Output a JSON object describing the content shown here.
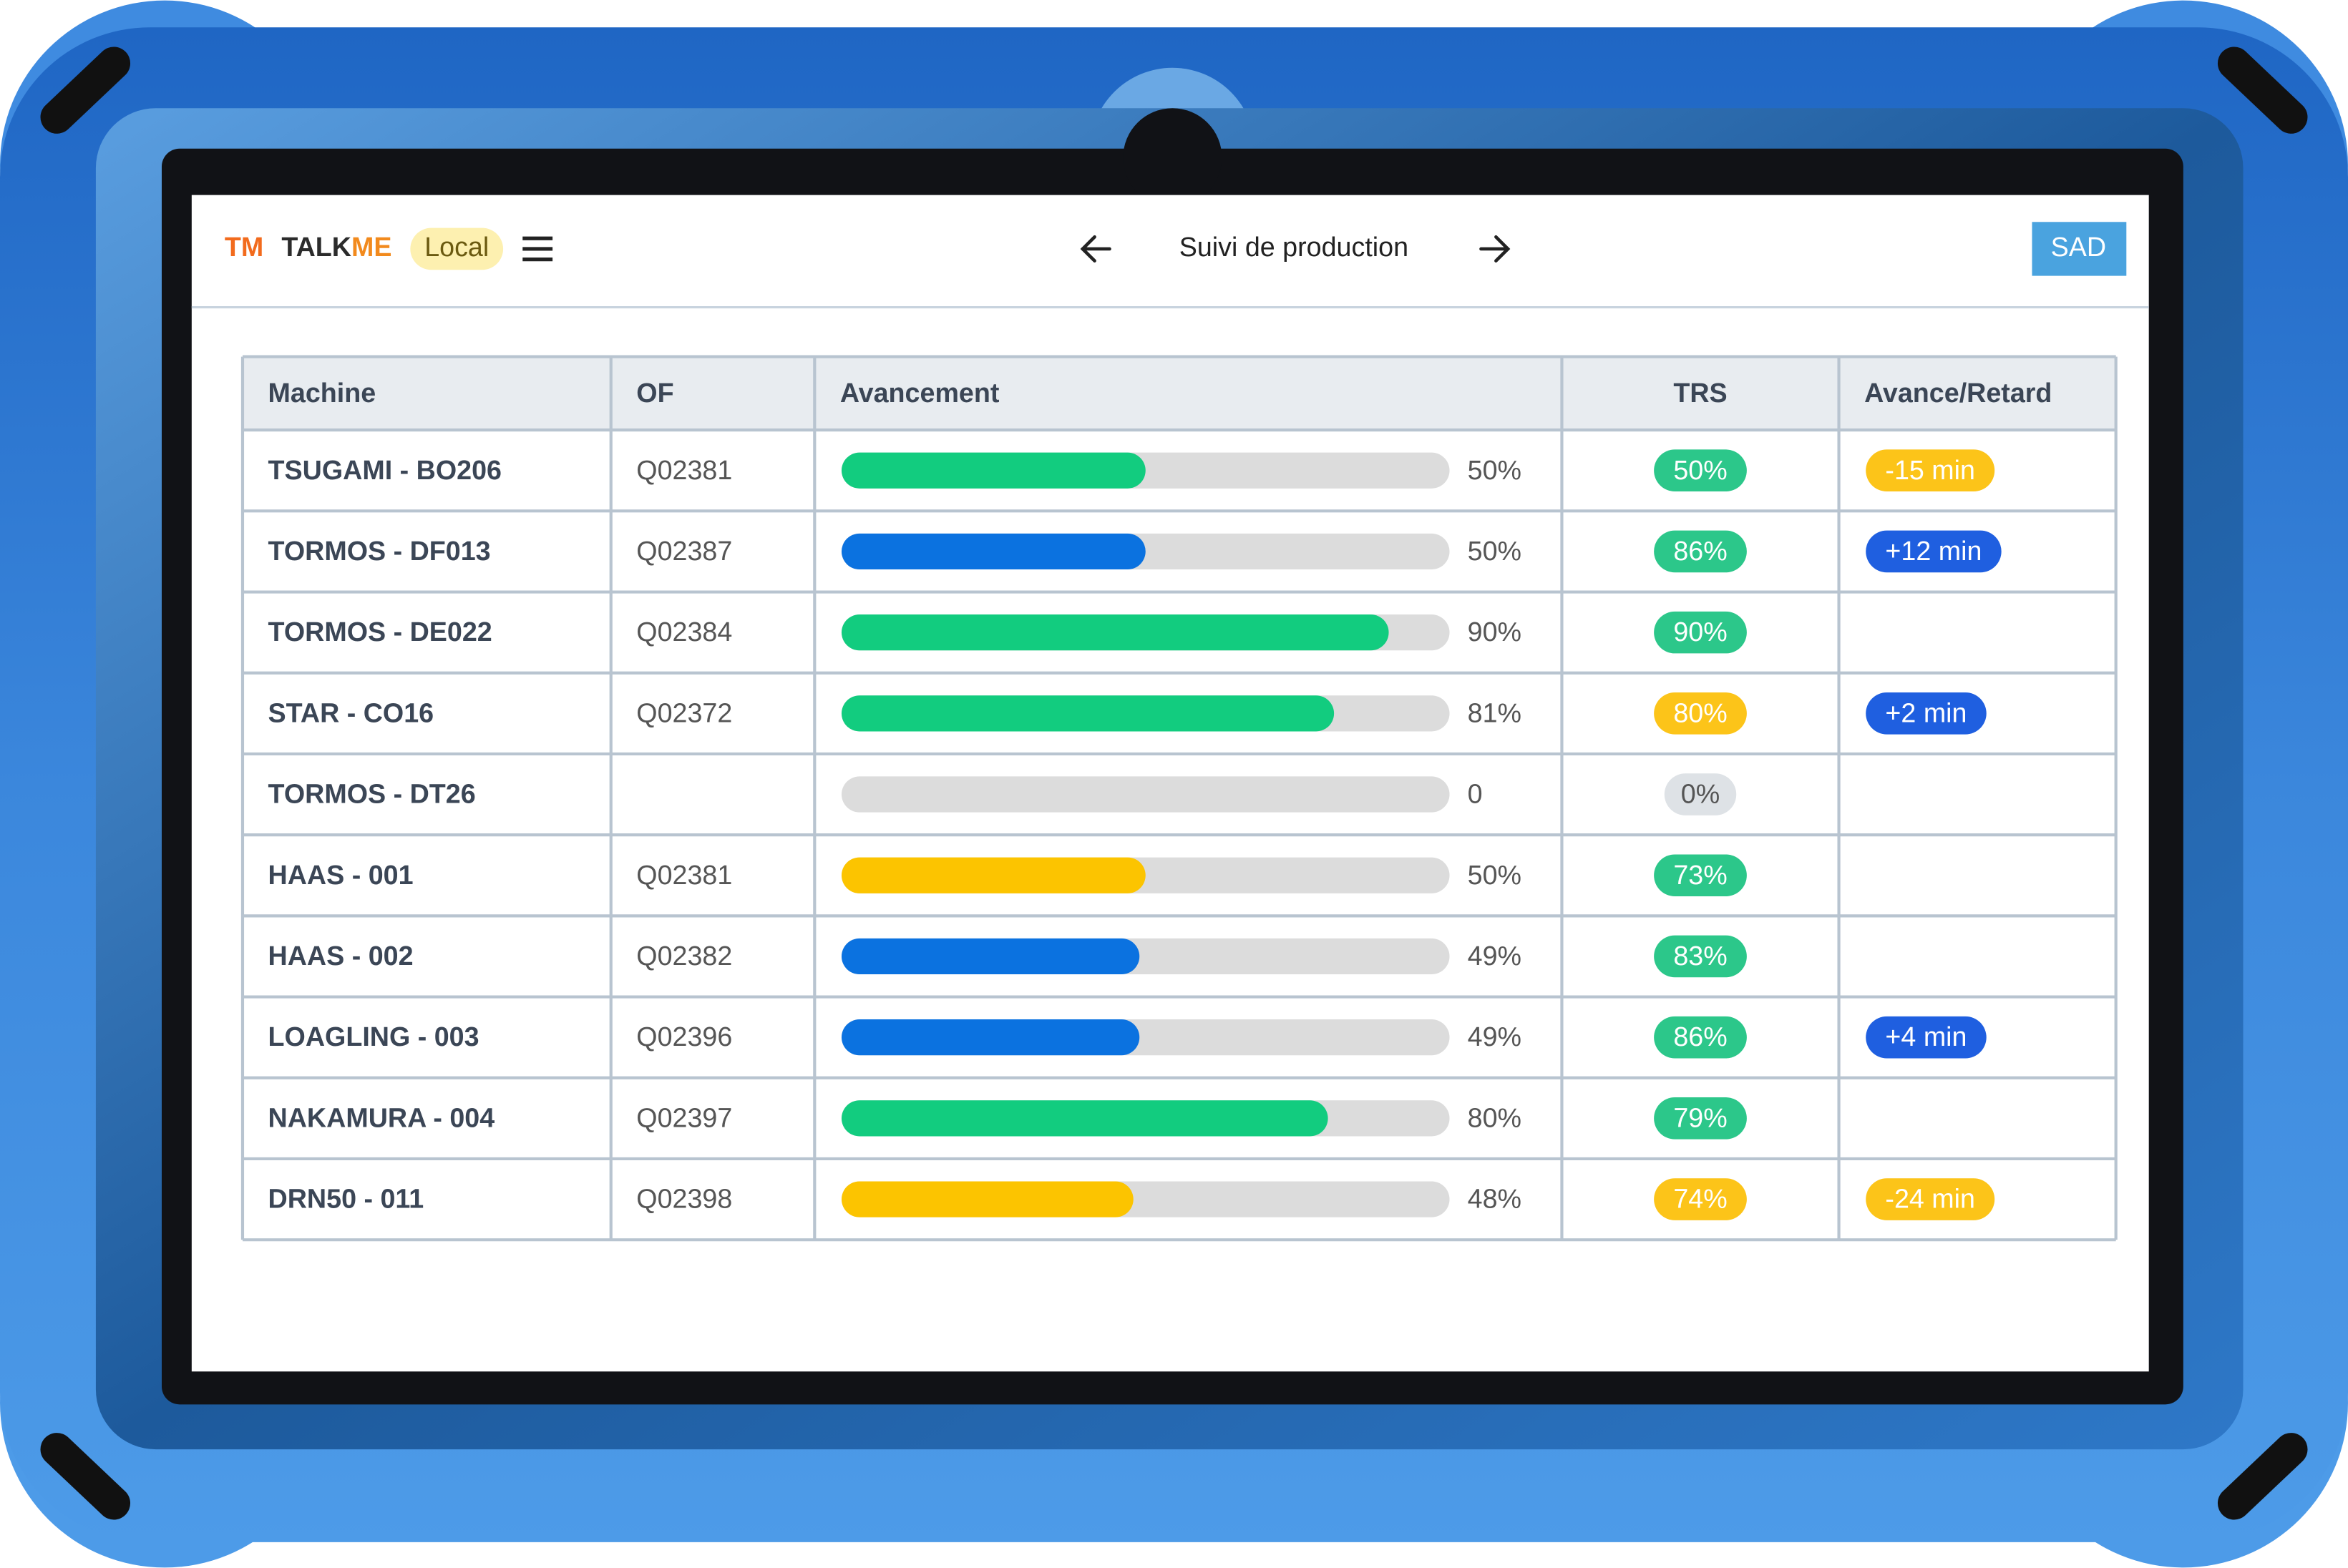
{
  "header": {
    "logo_mark": "TM",
    "logo_left": "TALK",
    "logo_right": "ME",
    "badge": "Local",
    "title": "Suivi de production",
    "user": "SAD"
  },
  "table": {
    "columns": [
      "Machine",
      "OF",
      "Avancement",
      "TRS",
      "Avance/Retard"
    ],
    "rows": [
      {
        "machine": "TSUGAMI - BO206",
        "of": "Q02381",
        "progress": 50,
        "progress_label": "50%",
        "bar_color": "#12cc7f",
        "trs": "50%",
        "trs_color": "#2cc78a",
        "delay": "-15 min",
        "delay_color": "#fcc419"
      },
      {
        "machine": "TORMOS - DF013",
        "of": "Q02387",
        "progress": 50,
        "progress_label": "50%",
        "bar_color": "#0b72e0",
        "trs": "86%",
        "trs_color": "#2cc78a",
        "delay": "+12 min",
        "delay_color": "#1f5fe0"
      },
      {
        "machine": "TORMOS - DE022",
        "of": "Q02384",
        "progress": 90,
        "progress_label": "90%",
        "bar_color": "#12cc7f",
        "trs": "90%",
        "trs_color": "#2cc78a"
      },
      {
        "machine": "STAR - CO16",
        "of": "Q02372",
        "progress": 81,
        "progress_label": "81%",
        "bar_color": "#12cc7f",
        "trs": "80%",
        "trs_color": "#fcc419",
        "delay": "+2 min",
        "delay_color": "#1f5fe0"
      },
      {
        "machine": "TORMOS - DT26",
        "progress": 0,
        "progress_label": "0",
        "bar_color": "#dcdcdc",
        "trs": "0%",
        "trs_color": "#dee2e6"
      },
      {
        "machine": "HAAS - 001",
        "of": "Q02381",
        "progress": 50,
        "progress_label": "50%",
        "bar_color": "#fcc400",
        "trs": "73%",
        "trs_color": "#2cc78a"
      },
      {
        "machine": "HAAS - 002",
        "of": "Q02382",
        "progress": 49,
        "progress_label": "49%",
        "bar_color": "#0b72e0",
        "trs": "83%",
        "trs_color": "#2cc78a"
      },
      {
        "machine": "LOAGLING - 003",
        "of": "Q02396",
        "progress": 49,
        "progress_label": "49%",
        "bar_color": "#0b72e0",
        "trs": "86%",
        "trs_color": "#2cc78a",
        "delay": "+4 min",
        "delay_color": "#1f5fe0"
      },
      {
        "machine": "NAKAMURA - 004",
        "of": "Q02397",
        "progress": 80,
        "progress_label": "80%",
        "bar_color": "#12cc7f",
        "trs": "79%",
        "trs_color": "#2cc78a"
      },
      {
        "machine": "DRN50 - 011",
        "of": "Q02398",
        "progress": 48,
        "progress_label": "48%",
        "bar_color": "#fcc400",
        "trs": "74%",
        "trs_color": "#fcc419",
        "delay": "-24 min",
        "delay_color": "#fcc419"
      }
    ]
  }
}
